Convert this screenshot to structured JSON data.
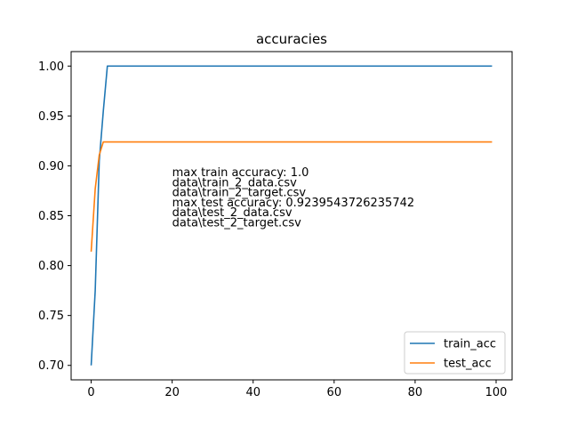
{
  "chart_data": {
    "type": "line",
    "title": "accuracies",
    "xlabel": "",
    "ylabel": "",
    "xlim": [
      -4.95,
      103.95
    ],
    "ylim": [
      0.6855,
      1.0145
    ],
    "xticks": [
      0,
      20,
      40,
      60,
      80,
      100
    ],
    "xtick_labels": [
      "0",
      "20",
      "40",
      "60",
      "80",
      "100"
    ],
    "yticks": [
      0.7,
      0.75,
      0.8,
      0.85,
      0.9,
      0.95,
      1.0
    ],
    "ytick_labels": [
      "0.70",
      "0.75",
      "0.80",
      "0.85",
      "0.90",
      "0.95",
      "1.00"
    ],
    "grid": false,
    "legend_position": "lower-right",
    "series": [
      {
        "name": "train_acc",
        "color": "#1f77b4",
        "points": [
          [
            0,
            0.7
          ],
          [
            1,
            0.775
          ],
          [
            2,
            0.905
          ],
          [
            3,
            0.955
          ],
          [
            4,
            1.0
          ],
          [
            99,
            1.0
          ]
        ]
      },
      {
        "name": "test_acc",
        "color": "#ff7f0e",
        "points": [
          [
            0,
            0.814
          ],
          [
            1,
            0.877
          ],
          [
            2,
            0.911
          ],
          [
            3,
            0.9239543726235742
          ],
          [
            99,
            0.9239543726235742
          ]
        ]
      }
    ],
    "annotation": {
      "x": 20,
      "lines": [
        "max train accuracy: 1.0",
        "data\\train_2_data.csv",
        "data\\train_2_target.csv",
        "max test accuracy: 0.9239543726235742",
        "data\\test_2_data.csv",
        "data\\test_2_target.csv"
      ]
    }
  }
}
